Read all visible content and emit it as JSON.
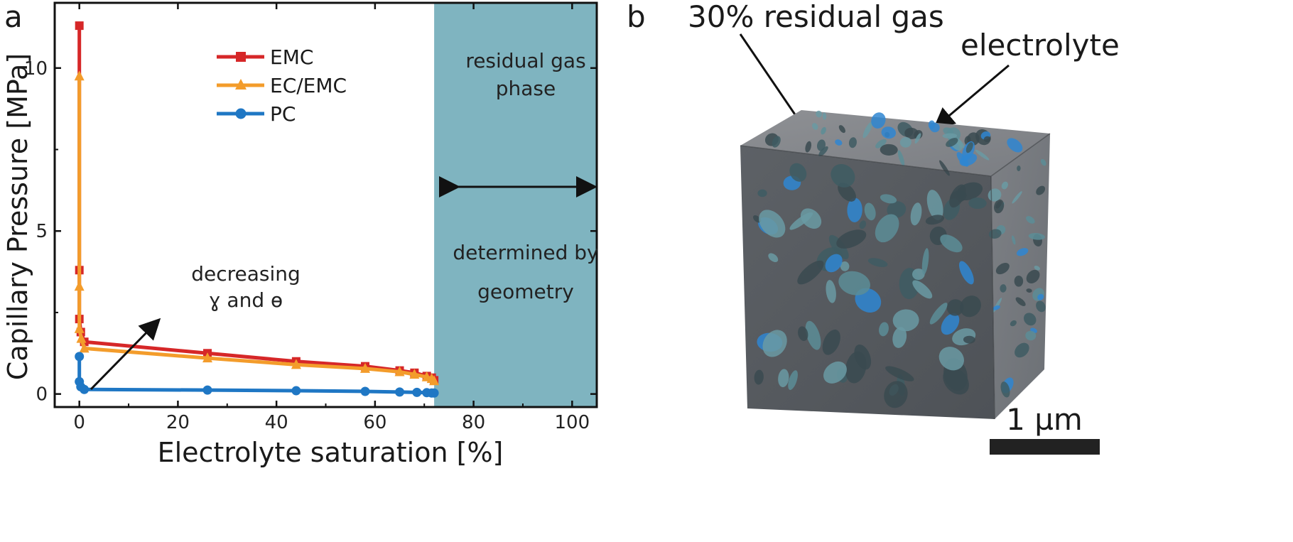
{
  "panels": {
    "a_label": "a",
    "b_label": "b"
  },
  "chart_data": {
    "type": "line",
    "xlabel": "Electrolyte saturation [%]",
    "ylabel": "Capillary Pressure [MPa]",
    "xlim": [
      -5,
      105
    ],
    "ylim": [
      -0.4,
      12
    ],
    "xticks": [
      0,
      20,
      40,
      60,
      80,
      100
    ],
    "yticks": [
      0,
      5,
      10
    ],
    "legend_position": "top-center",
    "series": [
      {
        "name": "EMC",
        "color": "#d62728",
        "marker": "square",
        "x": [
          0,
          0,
          0,
          0.3,
          1,
          26,
          44,
          58,
          65,
          68,
          70.5,
          71.5,
          72
        ],
        "y": [
          11.3,
          3.8,
          2.3,
          1.9,
          1.6,
          1.25,
          1.0,
          0.85,
          0.72,
          0.65,
          0.55,
          0.5,
          0.42
        ]
      },
      {
        "name": "EC/EMC",
        "color": "#f39c2b",
        "marker": "triangle",
        "x": [
          0,
          0,
          0,
          0.4,
          1,
          26,
          44,
          58,
          65,
          68,
          70.5,
          71.5,
          72
        ],
        "y": [
          9.75,
          3.3,
          2.0,
          1.7,
          1.4,
          1.1,
          0.9,
          0.78,
          0.68,
          0.6,
          0.52,
          0.47,
          0.4
        ]
      },
      {
        "name": "PC",
        "color": "#1f77c4",
        "marker": "circle",
        "x": [
          0,
          0,
          0.3,
          1,
          26,
          44,
          58,
          65,
          68.5,
          70.5,
          71.5,
          72
        ],
        "y": [
          1.15,
          0.38,
          0.22,
          0.14,
          0.12,
          0.1,
          0.08,
          0.06,
          0.05,
          0.04,
          0.03,
          0.03
        ]
      }
    ],
    "shaded_region": {
      "x_from": 72,
      "x_to": 105,
      "color": "#7fb4c0",
      "label_top": [
        "residual gas",
        "phase"
      ],
      "label_bottom": [
        "determined by",
        "geometry"
      ]
    },
    "annotation": {
      "lines": [
        "decreasing",
        "ɣ and ө"
      ]
    }
  },
  "figure_b": {
    "label_gas": "30% residual gas",
    "label_electrolyte": "electrolyte",
    "scalebar_label": "1 µm"
  }
}
